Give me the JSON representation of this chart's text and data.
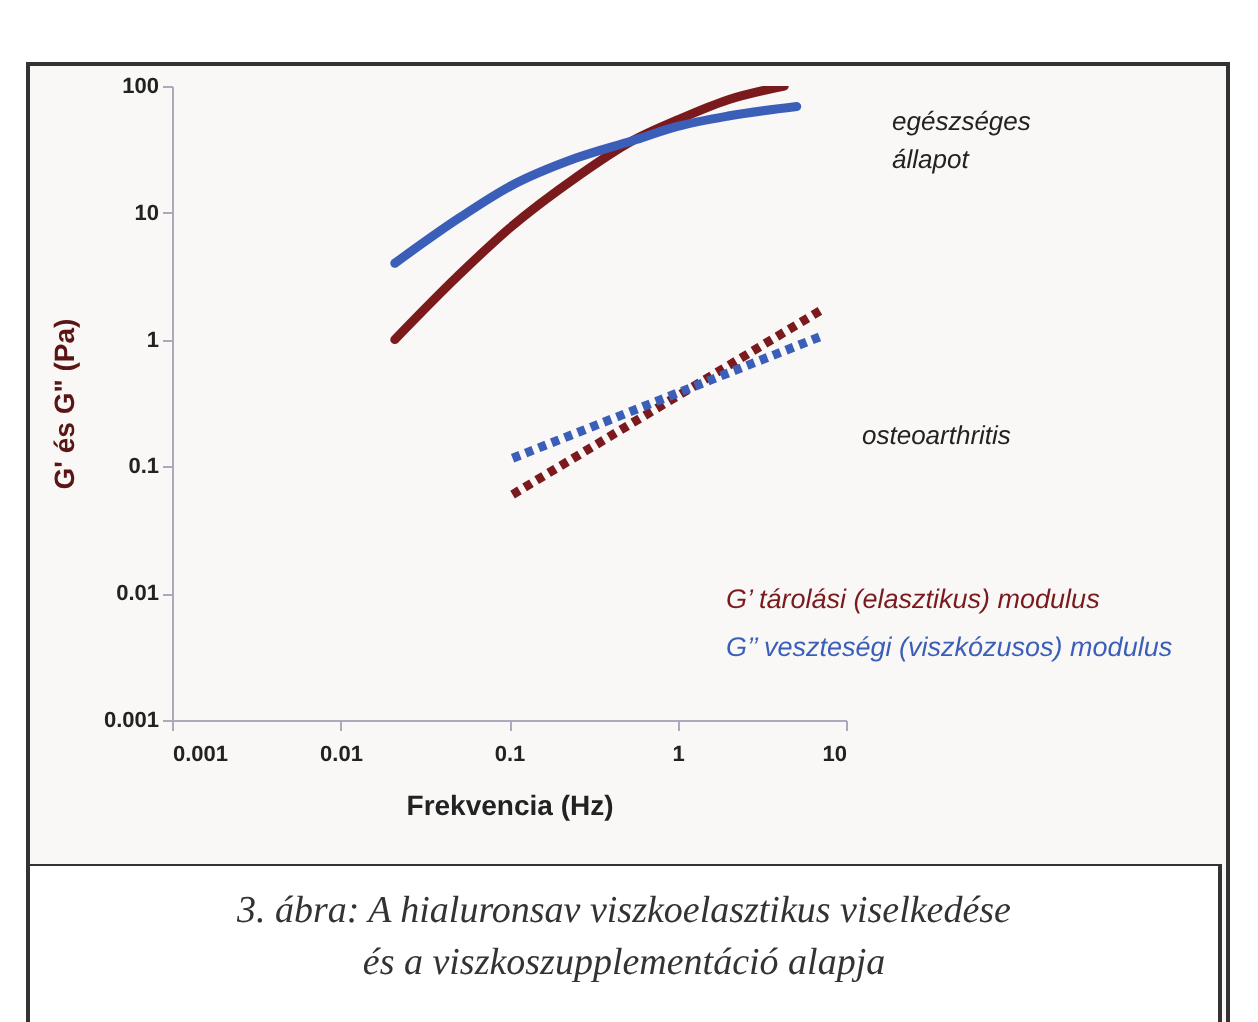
{
  "chart_data": {
    "type": "line",
    "xlabel": "Frekvencia (Hz)",
    "ylabel": "G' és G\" (Pa)",
    "log": "xy",
    "grid": false,
    "legend": "bottom right",
    "xlim": [
      0.001,
      10
    ],
    "xticks": [
      0.001,
      0.01,
      0.1,
      1,
      10
    ],
    "ylim": [
      0.001,
      100
    ],
    "yticks": [
      0.001,
      0.01,
      0.1,
      1,
      10,
      100
    ],
    "series": [
      {
        "name": "G’ tárolási (elasztikus) modulus",
        "color": "#7a1a1c",
        "line_style": "solid",
        "x": [
          0.021,
          0.05,
          0.1,
          0.25,
          0.54,
          1,
          2,
          4.3
        ],
        "values": [
          1,
          3.2,
          7.5,
          19,
          37,
          54,
          78,
          100
        ]
      },
      {
        "name": "G’’ veszteségi (viszkózusos) modulus",
        "color": "#3b5fb8",
        "line_style": "solid",
        "x": [
          0.021,
          0.05,
          0.1,
          0.25,
          0.54,
          1,
          2,
          5.1
        ],
        "values": [
          4,
          9,
          16,
          27,
          37,
          48,
          58,
          69
        ]
      },
      {
        "color": "#7a1a1c",
        "line_style": "dotted",
        "x": [
          0.105,
          7.4
        ],
        "values": [
          0.06,
          1.76
        ]
      },
      {
        "color": "#3b5fb8",
        "line_style": "dotted",
        "x": [
          0.105,
          7.1
        ],
        "values": [
          0.116,
          1.06
        ]
      }
    ],
    "annotations": [
      "egészséges állapot",
      "osteoarthritis",
      "3. ábra: A hialuronsav viszkoelasztikus viselkedése és a viszkoszupplementáció alapja"
    ]
  }
}
